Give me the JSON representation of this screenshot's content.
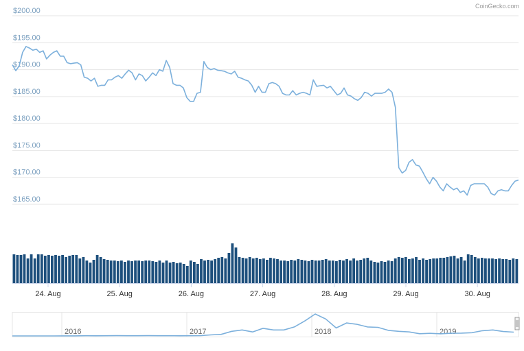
{
  "chart_data": {
    "type": "line",
    "watermark": "CoinGecko.com",
    "ylim": [
      165,
      200
    ],
    "yticks": [
      {
        "value": 200,
        "label": "$200.00"
      },
      {
        "value": 195,
        "label": "$195.00"
      },
      {
        "value": 190,
        "label": "$190.00"
      },
      {
        "value": 185,
        "label": "$185.00"
      },
      {
        "value": 180,
        "label": "$180.00"
      },
      {
        "value": 175,
        "label": "$175.00"
      },
      {
        "value": 170,
        "label": "$170.00"
      },
      {
        "value": 165,
        "label": "$165.00"
      }
    ],
    "grid": true,
    "xticks": [
      "24. Aug",
      "25. Aug",
      "26. Aug",
      "27. Aug",
      "28. Aug",
      "29. Aug",
      "30. Aug"
    ],
    "price": {
      "color": "#7cb0dc",
      "values": [
        190.9,
        189.8,
        190.7,
        193.2,
        194.3,
        194.0,
        193.6,
        193.8,
        193.2,
        193.5,
        192.0,
        192.7,
        193.2,
        193.5,
        192.5,
        192.5,
        191.3,
        191.1,
        191.2,
        191.3,
        190.9,
        188.6,
        188.4,
        187.9,
        188.4,
        186.9,
        187.1,
        187.1,
        188.1,
        188.1,
        188.6,
        188.9,
        188.4,
        189.2,
        189.9,
        189.4,
        188.1,
        189.2,
        188.9,
        187.9,
        188.6,
        189.4,
        188.9,
        190.0,
        189.7,
        191.7,
        190.4,
        187.4,
        187.1,
        187.1,
        186.6,
        184.8,
        184.1,
        184.1,
        185.6,
        185.8,
        191.5,
        190.4,
        190.0,
        190.2,
        189.9,
        189.8,
        189.7,
        189.4,
        189.2,
        189.7,
        188.6,
        188.4,
        188.1,
        187.9,
        187.1,
        185.8,
        186.9,
        185.8,
        185.8,
        187.4,
        187.6,
        187.4,
        186.9,
        185.6,
        185.3,
        185.3,
        186.1,
        185.3,
        185.6,
        185.8,
        185.6,
        185.3,
        188.1,
        186.9,
        187.0,
        187.1,
        186.6,
        186.9,
        186.1,
        185.3,
        185.6,
        186.6,
        185.3,
        185.1,
        184.6,
        184.3,
        184.8,
        185.8,
        185.6,
        185.1,
        185.6,
        185.6,
        185.6,
        185.8,
        186.4,
        185.8,
        183.0,
        171.8,
        170.8,
        171.3,
        172.8,
        173.3,
        172.3,
        172.1,
        171.0,
        169.8,
        168.8,
        170.0,
        169.3,
        168.2,
        167.5,
        168.8,
        168.2,
        167.7,
        168.0,
        167.2,
        167.5,
        166.7,
        168.5,
        168.8,
        168.8,
        168.8,
        168.8,
        168.2,
        167.0,
        166.7,
        167.5,
        167.7,
        167.5,
        167.5,
        168.5,
        169.3,
        169.5
      ]
    },
    "volume": {
      "color": "#1d4f7c",
      "values": [
        42,
        41,
        41,
        42,
        36,
        42,
        36,
        42,
        42,
        40,
        41,
        40,
        41,
        40,
        41,
        38,
        40,
        41,
        41,
        36,
        38,
        33,
        30,
        34,
        41,
        38,
        35,
        34,
        33,
        33,
        32,
        33,
        31,
        33,
        32,
        33,
        33,
        32,
        33,
        33,
        32,
        31,
        33,
        30,
        33,
        30,
        31,
        29,
        30,
        28,
        25,
        33,
        31,
        28,
        35,
        33,
        34,
        33,
        35,
        37,
        38,
        36,
        44,
        58,
        52,
        38,
        37,
        36,
        38,
        36,
        37,
        35,
        36,
        34,
        37,
        36,
        35,
        33,
        33,
        32,
        34,
        33,
        35,
        34,
        33,
        32,
        34,
        33,
        33,
        34,
        35,
        33,
        33,
        32,
        34,
        33,
        35,
        33,
        36,
        33,
        34,
        36,
        37,
        33,
        31,
        30,
        32,
        31,
        33,
        32,
        36,
        38,
        37,
        38,
        35,
        36,
        38,
        34,
        36,
        34,
        35,
        36,
        36,
        37,
        37,
        38,
        39,
        40,
        36,
        38,
        33,
        42,
        41,
        38,
        36,
        37,
        36,
        36,
        36,
        35,
        36,
        35,
        35,
        34,
        36,
        35
      ]
    },
    "navigator": {
      "color": "#7cb0dc",
      "labels": [
        "2016",
        "2017",
        "2018",
        "2019"
      ],
      "values": [
        1,
        1,
        1,
        1,
        1,
        2,
        5,
        11,
        8,
        12,
        14,
        11,
        11,
        13,
        11,
        9,
        8,
        10,
        13,
        50,
        80,
        230,
        300,
        200,
        380,
        300,
        300,
        450,
        750,
        1100,
        850,
        400,
        650,
        580,
        450,
        430,
        280,
        230,
        200,
        110,
        130,
        105,
        135,
        140,
        160,
        260,
        300,
        220,
        190
      ]
    }
  }
}
